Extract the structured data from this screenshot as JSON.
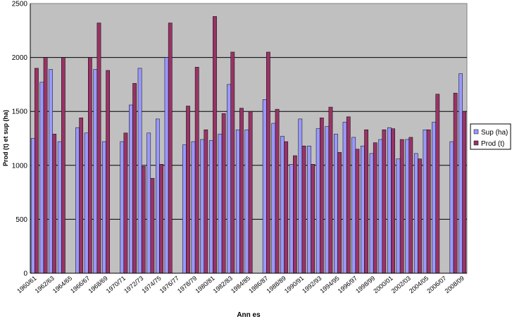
{
  "chart_data": {
    "type": "bar",
    "xlabel": "Ann es",
    "ylabel": "Prod (t) et sup (ha)",
    "ylim": [
      0,
      2500
    ],
    "yticks": [
      0,
      500,
      1000,
      1500,
      2000,
      2500
    ],
    "grid": true,
    "legend_position": "right",
    "categories": [
      "1960/61",
      "1961/62",
      "1962/63",
      "1963/64",
      "1964/65",
      "1965/66",
      "1966/67",
      "1967/68",
      "1968/69",
      "1969/70",
      "1970/71",
      "1971/72",
      "1972/73",
      "1973/74",
      "1974/75",
      "1975/76",
      "1976/77",
      "1977/78",
      "1978/79",
      "1979/80",
      "1980/81",
      "1981/82",
      "1982/83",
      "1983/84",
      "1984/85",
      "1985/86",
      "1986/87",
      "1987/88",
      "1988/89",
      "1989/90",
      "1990/91",
      "1991/92",
      "1992/93",
      "1993/94",
      "1994/95",
      "1995/96",
      "1996/97",
      "1997/98",
      "1998/99",
      "1999/00",
      "2000/01",
      "2001/02",
      "2002/03",
      "2003/04",
      "2004/05",
      "2005/06",
      "2006/07",
      "2007/08",
      "2008/09"
    ],
    "tick_labels": [
      "1960/61",
      "1962/63",
      "1964/65",
      "1966/67",
      "1968/69",
      "1970/71",
      "1972/73",
      "1974/75",
      "1976/77",
      "1978/79",
      "1980/81",
      "1982/83",
      "1984/85",
      "1986/87",
      "1988/89",
      "1990/91",
      "1992/93",
      "1994/95",
      "1996/97",
      "1998/99",
      "2000/01",
      "2002/03",
      "2004/05",
      "2006/07",
      "2008/09"
    ],
    "series": [
      {
        "name": "Sup (ha)",
        "color": "#9999ff",
        "values": [
          1250,
          1770,
          1890,
          1220,
          null,
          1350,
          1300,
          1890,
          1220,
          null,
          1220,
          1560,
          1900,
          1300,
          1430,
          2000,
          null,
          1190,
          1220,
          1240,
          1230,
          1290,
          1750,
          1330,
          1330,
          null,
          1610,
          1390,
          1270,
          1010,
          1430,
          1180,
          1340,
          1360,
          1290,
          1400,
          1260,
          1180,
          1110,
          1240,
          1350,
          1060,
          1240,
          1110,
          1330,
          1400,
          null,
          1220,
          1850
        ]
      },
      {
        "name": "Prod (t)",
        "color": "#993366",
        "values": [
          1900,
          2000,
          1290,
          2000,
          null,
          1440,
          2000,
          2320,
          1880,
          null,
          1300,
          1760,
          990,
          880,
          1010,
          2320,
          null,
          1550,
          1910,
          1330,
          2380,
          1480,
          2050,
          1530,
          1500,
          null,
          2050,
          1520,
          1220,
          1090,
          1180,
          1010,
          1440,
          1540,
          1120,
          1450,
          1150,
          1330,
          1210,
          1330,
          1340,
          1240,
          1260,
          1060,
          1330,
          1660,
          null,
          1670,
          1500
        ]
      }
    ]
  }
}
